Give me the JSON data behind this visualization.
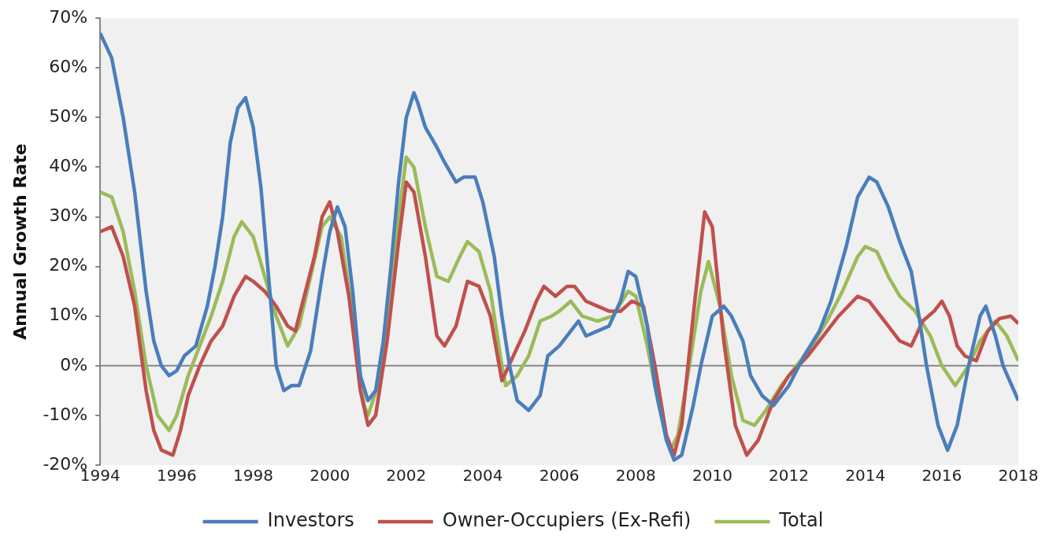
{
  "chart_data": {
    "type": "line",
    "ylabel": "Annual Growth Rate",
    "legend": "bottom",
    "grid": false,
    "xlim": [
      1994,
      2018
    ],
    "xticks": [
      1994,
      1996,
      1998,
      2000,
      2002,
      2004,
      2006,
      2008,
      2010,
      2012,
      2014,
      2016,
      2018
    ],
    "ref_lines": [
      {
        "axis": "y",
        "value": 0,
        "color": "#868686"
      }
    ],
    "ylim": [
      -20,
      70
    ],
    "yticks": [
      {
        "value": -20,
        "label": "-20%"
      },
      {
        "value": -10,
        "label": "-10%"
      },
      {
        "value": 0,
        "label": "0%"
      },
      {
        "value": 10,
        "label": "10%"
      },
      {
        "value": 20,
        "label": "20%"
      },
      {
        "value": 30,
        "label": "30%"
      },
      {
        "value": 40,
        "label": "40%"
      },
      {
        "value": 50,
        "label": "50%"
      },
      {
        "value": 60,
        "label": "60%"
      },
      {
        "value": 70,
        "label": "70%"
      }
    ],
    "series": [
      {
        "name": "Investors",
        "color": "#4a7ebb",
        "x": [
          1994,
          1994.3,
          1994.6,
          1994.9,
          1995.2,
          1995.4,
          1995.6,
          1995.8,
          1996,
          1996.2,
          1996.5,
          1996.8,
          1997,
          1997.2,
          1997.4,
          1997.6,
          1997.8,
          1998,
          1998.2,
          1998.4,
          1998.6,
          1998.8,
          1999,
          1999.2,
          1999.5,
          1999.8,
          2000,
          2000.2,
          2000.4,
          2000.6,
          2000.8,
          2001,
          2001.2,
          2001.4,
          2001.6,
          2001.8,
          2002,
          2002.2,
          2002.3,
          2002.5,
          2002.8,
          2003,
          2003.3,
          2003.5,
          2003.8,
          2004,
          2004.3,
          2004.5,
          2004.7,
          2004.9,
          2005.2,
          2005.5,
          2005.7,
          2006,
          2006.3,
          2006.5,
          2006.7,
          2007,
          2007.3,
          2007.6,
          2007.8,
          2008,
          2008.3,
          2008.5,
          2008.8,
          2009,
          2009.2,
          2009.5,
          2009.7,
          2010,
          2010.3,
          2010.5,
          2010.8,
          2011,
          2011.3,
          2011.6,
          2012,
          2012.4,
          2012.8,
          2013.1,
          2013.5,
          2013.8,
          2014.1,
          2014.3,
          2014.6,
          2014.9,
          2015.2,
          2015.4,
          2015.6,
          2015.9,
          2016.15,
          2016.4,
          2016.7,
          2017,
          2017.15,
          2017.4,
          2017.6,
          2018
        ],
        "values": [
          67,
          62,
          50,
          35,
          15,
          5,
          0,
          -2,
          -1,
          2,
          4,
          12,
          20,
          30,
          45,
          52,
          54,
          48,
          36,
          18,
          0,
          -5,
          -4,
          -4,
          3,
          18,
          27,
          32,
          28,
          15,
          -2,
          -7,
          -5,
          5,
          20,
          37,
          50,
          55,
          53,
          48,
          44,
          41,
          37,
          38,
          38,
          33,
          22,
          10,
          0,
          -7,
          -9,
          -6,
          2,
          4,
          7,
          9,
          6,
          7,
          8,
          13,
          19,
          18,
          8,
          -4,
          -15,
          -19,
          -18,
          -8,
          0,
          10,
          12,
          10,
          5,
          -2,
          -6,
          -8,
          -4,
          2,
          7,
          13,
          24,
          34,
          38,
          37,
          32,
          25,
          19,
          10,
          0,
          -12,
          -17,
          -12,
          0,
          10,
          12,
          6,
          0,
          -7
        ]
      },
      {
        "name": "Owner-Occupiers (Ex-Refi)",
        "color": "#c0504d",
        "x": [
          1994,
          1994.3,
          1994.6,
          1994.9,
          1995.2,
          1995.4,
          1995.6,
          1995.9,
          1996.1,
          1996.3,
          1996.6,
          1996.9,
          1997.2,
          1997.5,
          1997.8,
          1998,
          1998.3,
          1998.6,
          1998.9,
          1999.1,
          1999.3,
          1999.6,
          1999.8,
          2000,
          2000.2,
          2000.5,
          2000.8,
          2001,
          2001.2,
          2001.5,
          2001.8,
          2002,
          2002.2,
          2002.5,
          2002.8,
          2003,
          2003.3,
          2003.6,
          2003.9,
          2004.2,
          2004.5,
          2004.8,
          2005.1,
          2005.4,
          2005.6,
          2005.9,
          2006.2,
          2006.4,
          2006.7,
          2007,
          2007.3,
          2007.6,
          2007.9,
          2008.2,
          2008.5,
          2008.8,
          2009,
          2009.2,
          2009.5,
          2009.8,
          2010,
          2010.3,
          2010.6,
          2010.9,
          2011.2,
          2011.6,
          2012,
          2012.5,
          2012.9,
          2013.3,
          2013.8,
          2014.1,
          2014.6,
          2014.9,
          2015.2,
          2015.5,
          2015.8,
          2016,
          2016.2,
          2016.4,
          2016.6,
          2016.9,
          2017.2,
          2017.5,
          2017.8,
          2018
        ],
        "values": [
          27,
          28,
          22,
          12,
          -5,
          -13,
          -17,
          -18,
          -13,
          -6,
          0,
          5,
          8,
          14,
          18,
          17,
          15,
          12,
          8,
          7,
          13,
          22,
          30,
          33,
          27,
          14,
          -5,
          -12,
          -10,
          5,
          25,
          37,
          35,
          22,
          6,
          4,
          8,
          17,
          16,
          10,
          -3,
          2,
          7,
          13,
          16,
          14,
          16,
          16,
          13,
          12,
          11,
          11,
          13,
          12,
          0,
          -14,
          -18,
          -12,
          10,
          31,
          28,
          5,
          -12,
          -18,
          -15,
          -7,
          -2,
          2,
          6,
          10,
          14,
          13,
          8,
          5,
          4,
          9,
          11,
          13,
          10,
          4,
          2,
          1,
          7,
          9.5,
          10,
          8.5
        ]
      },
      {
        "name": "Total",
        "color": "#9bbb59",
        "x": [
          1994,
          1994.3,
          1994.6,
          1994.9,
          1995.2,
          1995.5,
          1995.8,
          1996,
          1996.3,
          1996.6,
          1996.9,
          1997.2,
          1997.5,
          1997.7,
          1998,
          1998.3,
          1998.6,
          1998.9,
          1999.2,
          1999.5,
          1999.8,
          2000,
          2000.3,
          2000.6,
          2000.9,
          2001,
          2001.3,
          2001.6,
          2001.8,
          2002,
          2002.2,
          2002.5,
          2002.8,
          2003.1,
          2003.4,
          2003.6,
          2003.9,
          2004.2,
          2004.5,
          2004.6,
          2004.9,
          2005.2,
          2005.5,
          2005.8,
          2006,
          2006.3,
          2006.6,
          2007,
          2007.4,
          2007.8,
          2008,
          2008.3,
          2008.6,
          2008.9,
          2009.1,
          2009.4,
          2009.7,
          2009.9,
          2010.2,
          2010.5,
          2010.8,
          2011.1,
          2011.4,
          2011.8,
          2012.2,
          2012.6,
          2013,
          2013.4,
          2013.8,
          2014,
          2014.3,
          2014.6,
          2014.9,
          2015.3,
          2015.7,
          2016,
          2016.35,
          2016.7,
          2017,
          2017.4,
          2017.7,
          2018
        ],
        "values": [
          35,
          34,
          27,
          15,
          0,
          -10,
          -13,
          -10,
          -2,
          4,
          10,
          17,
          26,
          29,
          26,
          18,
          10,
          4,
          8,
          18,
          28,
          30,
          26,
          10,
          -8,
          -10,
          -3,
          15,
          30,
          42,
          40,
          28,
          18,
          17,
          22,
          25,
          23,
          15,
          0,
          -4,
          -2,
          2,
          9,
          10,
          11,
          13,
          10,
          9,
          10,
          15,
          14,
          4,
          -8,
          -17,
          -14,
          0,
          15,
          21,
          12,
          -2,
          -11,
          -12,
          -9,
          -4,
          0,
          4,
          9,
          15,
          22,
          24,
          23,
          18,
          14,
          11,
          6,
          0,
          -4,
          0,
          5,
          9,
          6,
          1
        ]
      }
    ]
  }
}
